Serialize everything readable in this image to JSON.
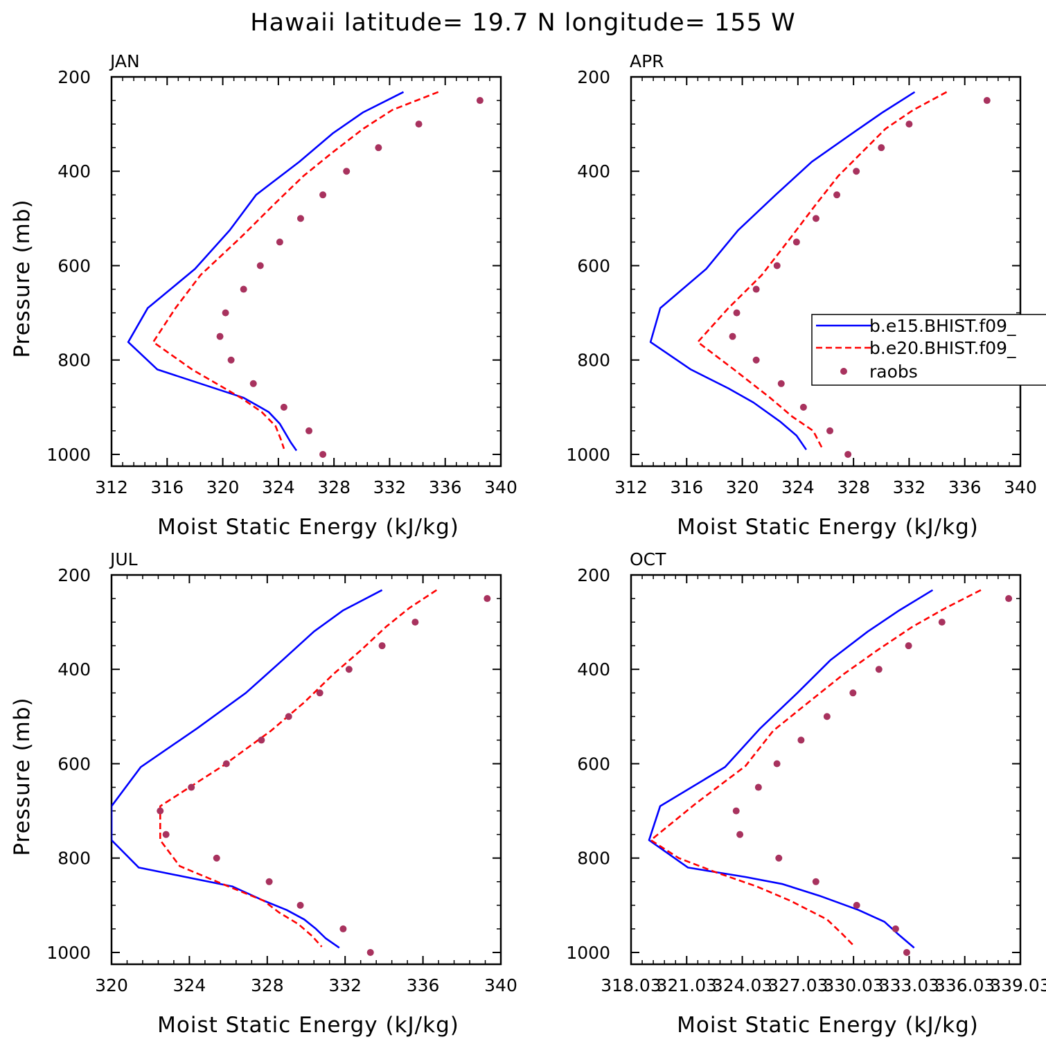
{
  "suptitle": "Hawaii  latitude= 19.7 N longitude= 155 W",
  "legend": {
    "panel": 1,
    "placement": "right",
    "entries": [
      "b.e15.BHIST.f09_",
      "b.e20.BHIST.f09_",
      "raobs"
    ]
  },
  "colors": {
    "series1": "#0000ff",
    "series2": "#ff0000",
    "raobs": "#a8325e"
  },
  "chart_data": [
    {
      "type": "line",
      "title": "JAN",
      "xlabel": "Moist Static Energy (kJ/kg)",
      "ylabel": "Pressure (mb)",
      "xlim": [
        312,
        340
      ],
      "ylim": [
        1025,
        200
      ],
      "xticks": [
        312,
        316,
        320,
        324,
        328,
        332,
        336,
        340
      ],
      "xticklabels": [
        "312",
        "316",
        "320",
        "324",
        "328",
        "332",
        "336",
        "340"
      ],
      "yticks": [
        200,
        400,
        600,
        800,
        1000
      ],
      "yticklabels": [
        "200",
        "400",
        "600",
        "800",
        "1000"
      ],
      "series": [
        {
          "style": "solid",
          "color": "#0000ff",
          "y": [
            232,
            275,
            320,
            380,
            450,
            525,
            607,
            690,
            762,
            820,
            880,
            910,
            935,
            955,
            975,
            992
          ],
          "x": [
            333.0,
            330.1,
            327.9,
            325.5,
            322.4,
            320.5,
            318.0,
            314.6,
            313.2,
            315.3,
            321.5,
            323.3,
            324.1,
            324.5,
            324.9,
            325.3
          ]
        },
        {
          "style": "dashed",
          "color": "#ff0000",
          "y": [
            232,
            270,
            310,
            360,
            410,
            470,
            540,
            620,
            690,
            762,
            820,
            880,
            910,
            940,
            970,
            988
          ],
          "x": [
            335.5,
            332.2,
            330.1,
            327.9,
            325.8,
            323.7,
            321.3,
            318.4,
            316.6,
            315.0,
            317.8,
            321.3,
            322.8,
            323.8,
            324.2,
            324.4
          ]
        }
      ],
      "points": {
        "y": [
          250,
          300,
          350,
          400,
          450,
          500,
          550,
          600,
          650,
          700,
          750,
          800,
          850,
          900,
          950,
          1000
        ],
        "x": [
          338.5,
          334.1,
          331.2,
          328.9,
          327.2,
          325.6,
          324.1,
          322.7,
          321.5,
          320.2,
          319.8,
          320.6,
          322.2,
          324.4,
          326.2,
          327.2
        ]
      }
    },
    {
      "type": "line",
      "title": "APR",
      "xlabel": "Moist Static Energy (kJ/kg)",
      "ylabel": "",
      "xlim": [
        312,
        340
      ],
      "ylim": [
        1025,
        200
      ],
      "xticks": [
        312,
        316,
        320,
        324,
        328,
        332,
        336,
        340
      ],
      "xticklabels": [
        "312",
        "316",
        "320",
        "324",
        "328",
        "332",
        "336",
        "340"
      ],
      "yticks": [
        200,
        400,
        600,
        800,
        1000
      ],
      "yticklabels": [
        "200",
        "400",
        "600",
        "800",
        "1000"
      ],
      "series": [
        {
          "style": "solid",
          "color": "#0000ff",
          "y": [
            232,
            275,
            320,
            380,
            450,
            525,
            607,
            690,
            762,
            820,
            860,
            890,
            930,
            960,
            990
          ],
          "x": [
            332.4,
            330.1,
            327.9,
            325.0,
            322.4,
            319.7,
            317.4,
            314.1,
            313.4,
            316.3,
            319.0,
            320.8,
            322.7,
            323.9,
            324.6
          ]
        },
        {
          "style": "dashed",
          "color": "#ff0000",
          "y": [
            232,
            270,
            310,
            360,
            410,
            470,
            540,
            620,
            690,
            762,
            820,
            880,
            920,
            950,
            990
          ],
          "x": [
            334.7,
            332.3,
            330.3,
            328.6,
            326.9,
            325.3,
            323.5,
            321.4,
            319.0,
            316.8,
            319.4,
            322.0,
            323.6,
            325.1,
            325.8
          ]
        }
      ],
      "points": {
        "y": [
          250,
          300,
          350,
          400,
          450,
          500,
          550,
          600,
          650,
          700,
          750,
          800,
          850,
          900,
          950,
          1000
        ],
        "x": [
          337.6,
          332.0,
          330.0,
          328.2,
          326.8,
          325.3,
          323.9,
          322.5,
          321.0,
          319.6,
          319.3,
          321.0,
          322.8,
          324.4,
          326.3,
          327.6
        ]
      }
    },
    {
      "type": "line",
      "title": "JUL",
      "xlabel": "Moist Static Energy (kJ/kg)",
      "ylabel": "Pressure (mb)",
      "xlim": [
        320,
        340
      ],
      "ylim": [
        1025,
        200
      ],
      "xticks": [
        320,
        324,
        328,
        332,
        336,
        340
      ],
      "xticklabels": [
        "320",
        "324",
        "328",
        "332",
        "336",
        "340"
      ],
      "yticks": [
        200,
        400,
        600,
        800,
        1000
      ],
      "yticklabels": [
        "200",
        "400",
        "600",
        "800",
        "1000"
      ],
      "series": [
        {
          "style": "solid",
          "color": "#0000ff",
          "y": [
            232,
            275,
            320,
            380,
            450,
            525,
            607,
            690,
            762,
            820,
            860,
            890,
            910,
            930,
            950,
            970,
            990
          ],
          "x": [
            333.9,
            331.9,
            330.4,
            328.8,
            326.9,
            324.4,
            321.5,
            320.0,
            320.0,
            321.4,
            326.2,
            327.8,
            329.0,
            329.9,
            330.5,
            331.0,
            331.7
          ]
        },
        {
          "style": "dashed",
          "color": "#ff0000",
          "y": [
            232,
            270,
            310,
            360,
            410,
            470,
            530,
            605,
            690,
            762,
            817,
            860,
            890,
            915,
            940,
            965,
            988
          ],
          "x": [
            336.7,
            335.3,
            334.1,
            332.8,
            331.4,
            329.9,
            328.2,
            325.7,
            322.5,
            322.5,
            323.5,
            326.0,
            327.8,
            328.6,
            329.6,
            330.3,
            330.8
          ]
        }
      ],
      "points": {
        "y": [
          250,
          300,
          350,
          400,
          450,
          500,
          550,
          600,
          650,
          700,
          750,
          800,
          850,
          900,
          950,
          1000
        ],
        "x": [
          339.3,
          335.6,
          333.9,
          332.2,
          330.7,
          329.1,
          327.7,
          325.9,
          324.1,
          322.5,
          322.8,
          325.4,
          328.1,
          329.7,
          331.9,
          333.3
        ]
      }
    },
    {
      "type": "line",
      "title": "OCT",
      "xlabel": "Moist Static Energy (kJ/kg)",
      "ylabel": "",
      "xlim": [
        318.03,
        339.03
      ],
      "ylim": [
        1025,
        200
      ],
      "xticks": [
        318.03,
        321.03,
        324.03,
        327.03,
        330.03,
        333.03,
        336.03,
        339.03
      ],
      "xticklabels": [
        "318.03",
        "321.03",
        "324.03",
        "327.03",
        "330.03",
        "333.03",
        "336.03",
        "339.03"
      ],
      "yticks": [
        200,
        400,
        600,
        800,
        1000
      ],
      "yticklabels": [
        "200",
        "400",
        "600",
        "800",
        "1000"
      ],
      "series": [
        {
          "style": "solid",
          "color": "#0000ff",
          "y": [
            232,
            275,
            320,
            380,
            450,
            525,
            607,
            690,
            762,
            820,
            840,
            855,
            880,
            910,
            935,
            960,
            990
          ],
          "x": [
            334.3,
            332.5,
            330.8,
            328.8,
            327.0,
            325.0,
            323.1,
            319.6,
            319.0,
            321.1,
            324.2,
            326.2,
            328.2,
            330.3,
            331.7,
            332.4,
            333.3
          ]
        },
        {
          "style": "dashed",
          "color": "#ff0000",
          "y": [
            232,
            270,
            310,
            360,
            410,
            470,
            530,
            605,
            685,
            762,
            800,
            830,
            860,
            890,
            930,
            960,
            988
          ],
          "x": [
            336.9,
            335.0,
            333.2,
            331.3,
            329.5,
            327.6,
            325.7,
            324.2,
            321.5,
            319.1,
            320.6,
            322.6,
            324.8,
            326.6,
            328.6,
            329.4,
            330.1
          ]
        }
      ],
      "points": {
        "y": [
          250,
          300,
          350,
          400,
          450,
          500,
          550,
          600,
          650,
          700,
          750,
          800,
          850,
          900,
          950,
          1000
        ],
        "x": [
          338.4,
          334.8,
          333.0,
          331.4,
          330.0,
          328.6,
          327.2,
          325.9,
          324.9,
          323.7,
          323.9,
          326.0,
          328.0,
          330.2,
          332.3,
          332.9
        ]
      }
    }
  ]
}
